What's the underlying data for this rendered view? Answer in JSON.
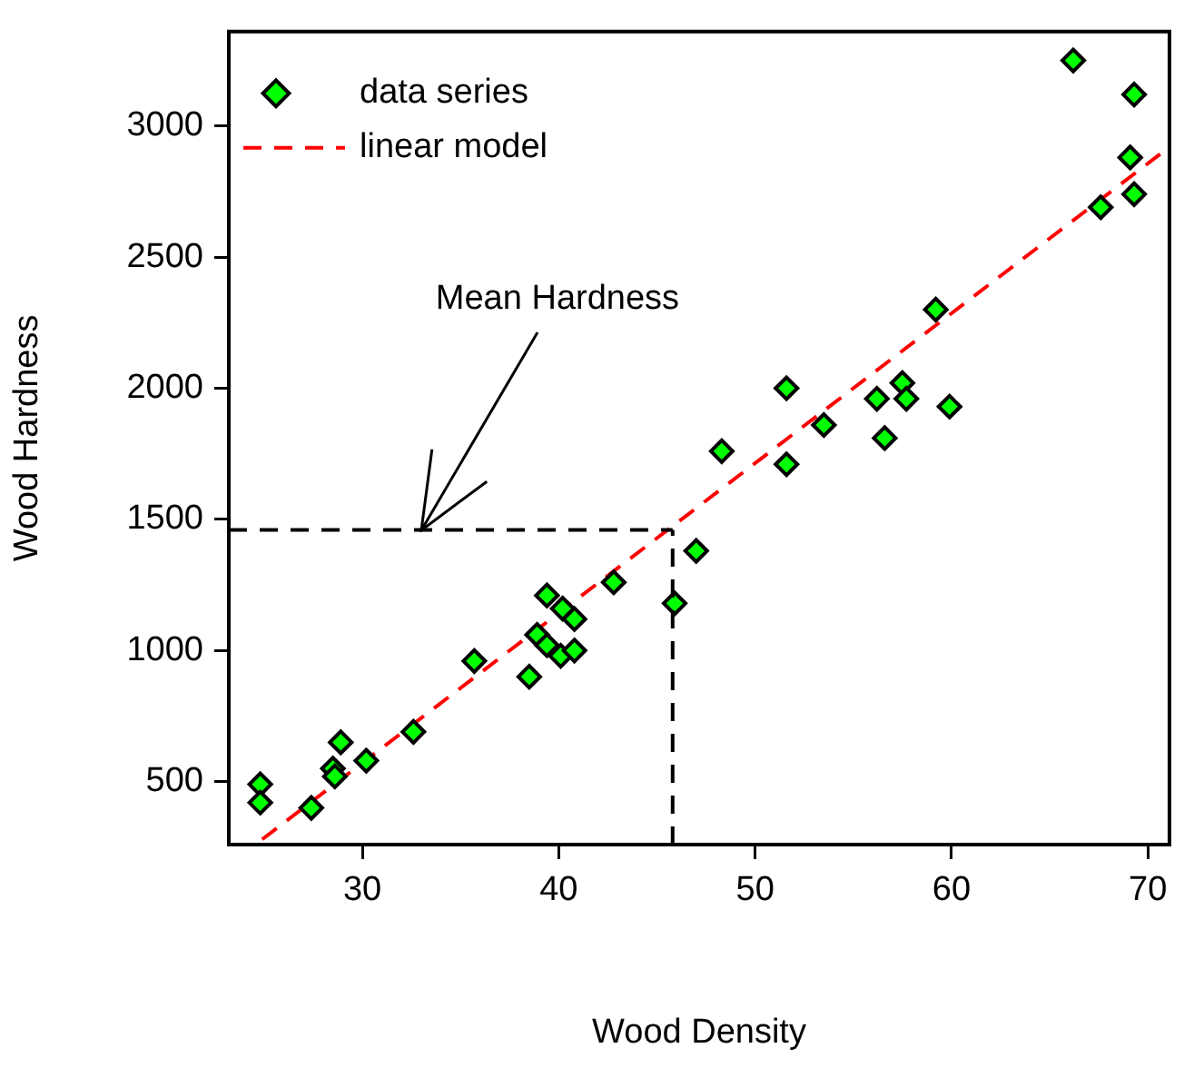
{
  "chart_data": {
    "type": "scatter",
    "xlabel": "Wood Density",
    "ylabel": "Wood Hardness",
    "xlim": [
      23.2,
      71.1
    ],
    "ylim": [
      260,
      3360
    ],
    "xticks": [
      30,
      40,
      50,
      60,
      70
    ],
    "yticks": [
      500,
      1000,
      1500,
      2000,
      2500,
      3000
    ],
    "grid": false,
    "legend": "top left",
    "marker": "diamond",
    "series": [
      {
        "name": "data series",
        "type": "scatter",
        "color": "#00ff00",
        "x": [
          24.8,
          24.8,
          27.4,
          28.5,
          28.6,
          28.9,
          30.2,
          32.6,
          35.7,
          38.5,
          38.9,
          39.4,
          39.4,
          40.2,
          40.1,
          40.8,
          40.8,
          42.8,
          45.9,
          47.0,
          48.3,
          51.6,
          51.6,
          53.5,
          56.2,
          56.6,
          57.5,
          57.7,
          59.2,
          59.9,
          67.6,
          66.2,
          69.3,
          69.1,
          69.3
        ],
        "values": [
          490,
          420,
          400,
          550,
          520,
          650,
          580,
          690,
          960,
          900,
          1060,
          1210,
          1020,
          1160,
          980,
          1120,
          1000,
          1260,
          1180,
          1380,
          1760,
          2000,
          1710,
          1860,
          1960,
          1810,
          2020,
          1960,
          2300,
          1930,
          2690,
          3250,
          3120,
          2880,
          2740
        ]
      },
      {
        "name": "linear model",
        "type": "line",
        "color": "#ff0000",
        "line_style": "dashed",
        "marker": "none",
        "x": [
          24.9,
          71.1
        ],
        "values": [
          280,
          2920
        ]
      }
    ],
    "ref_lines": [
      {
        "axis": "y",
        "value": 1460,
        "color": "#000000",
        "line_style": "dashed"
      },
      {
        "axis": "x",
        "value": 45.8,
        "color": "#000000",
        "line_style": "dashed"
      }
    ],
    "annotations": [
      {
        "text": "Mean Hardness",
        "x": 33,
        "y": 1460
      }
    ]
  }
}
